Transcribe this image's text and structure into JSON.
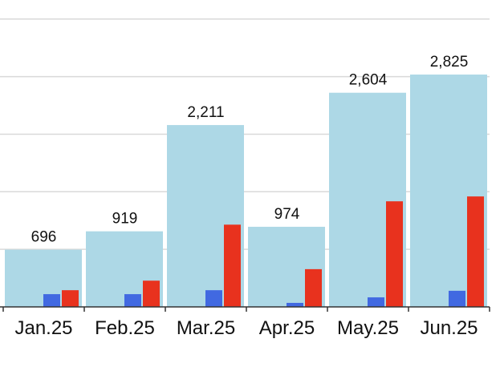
{
  "chart_data": {
    "type": "bar",
    "categories": [
      "Jan.25",
      "Feb.25",
      "Mar.25",
      "Apr.25",
      "May.25",
      "Jun.25"
    ],
    "series": [
      {
        "values": [
          696,
          919,
          2211,
          974,
          2604,
          2825
        ],
        "color": "#add8e6",
        "labels": [
          "696",
          "919",
          "2,211",
          "974",
          "2,604",
          "2,825"
        ]
      },
      {
        "values": [
          155,
          155,
          203,
          49,
          116,
          196
        ],
        "color": "#4169e1"
      },
      {
        "values": [
          203,
          319,
          1000,
          459,
          1284,
          1343
        ],
        "color": "#e8321e"
      }
    ],
    "ylim": [
      0,
      4000
    ],
    "grid": true,
    "gridlines": [
      0,
      700,
      1400,
      2100,
      2800,
      3500
    ]
  }
}
